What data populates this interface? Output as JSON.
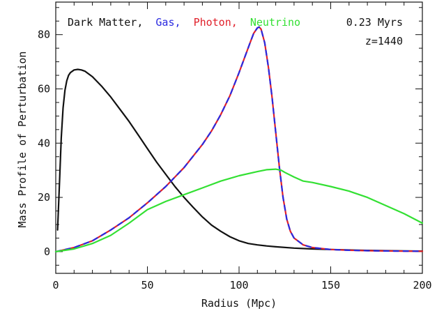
{
  "chart_data": {
    "type": "line",
    "title": "",
    "xlabel": "Radius (Mpc)",
    "ylabel": "Mass Profile of Perturbation",
    "xlim": [
      0,
      200
    ],
    "ylim": [
      -8,
      92
    ],
    "xticks": [
      0,
      50,
      100,
      150,
      200
    ],
    "yticks": [
      0,
      20,
      40,
      60,
      80
    ],
    "grid": false,
    "legend_position": "top-left",
    "annotations": [
      {
        "id": "time",
        "text": "0.23 Myrs"
      },
      {
        "id": "redshift",
        "text": "z=1440"
      }
    ],
    "legend": [
      {
        "text": "Dark Matter,",
        "color": "#000000"
      },
      {
        "text": "Gas,",
        "color": "#2a2ae0"
      },
      {
        "text": "Photon,",
        "color": "#e0202a"
      },
      {
        "text": "Neutrino",
        "color": "#33e033"
      }
    ],
    "series": [
      {
        "name": "Dark Matter",
        "color": "#111111",
        "x": [
          1,
          2,
          3,
          4,
          5,
          6,
          7,
          8,
          10,
          12,
          14,
          16,
          20,
          25,
          30,
          35,
          40,
          45,
          50,
          55,
          60,
          65,
          70,
          75,
          80,
          85,
          90,
          95,
          100,
          105,
          110,
          115,
          120,
          130,
          140,
          150,
          160,
          170,
          180,
          190,
          200
        ],
        "y": [
          8,
          25,
          42,
          53,
          59.5,
          63,
          65,
          66,
          67,
          67.2,
          67,
          66.5,
          64.5,
          61,
          57,
          52.5,
          48,
          43,
          38,
          33,
          28.5,
          24,
          20,
          16.3,
          12.8,
          9.8,
          7.5,
          5.5,
          4.0,
          3.0,
          2.5,
          2.1,
          1.8,
          1.3,
          1.0,
          0.8,
          0.6,
          0.45,
          0.35,
          0.25,
          0.2
        ]
      },
      {
        "name": "Photon",
        "color": "#e0202a",
        "x": [
          0,
          10,
          20,
          30,
          40,
          50,
          60,
          70,
          80,
          85,
          90,
          95,
          100,
          103,
          106,
          108,
          110,
          111,
          112,
          114,
          116,
          118,
          120,
          122,
          124,
          126,
          128,
          130,
          135,
          140,
          150,
          160,
          170,
          180,
          190,
          200
        ],
        "y": [
          0,
          1.5,
          4,
          8,
          12.5,
          18,
          24,
          31,
          39.5,
          44.5,
          50.5,
          57.5,
          66,
          71.5,
          77,
          80.5,
          82.5,
          82.8,
          82,
          77,
          68,
          57,
          44,
          31,
          20,
          12,
          7.5,
          5,
          2.5,
          1.5,
          0.8,
          0.5,
          0.35,
          0.25,
          0.2,
          0.15
        ]
      },
      {
        "name": "Gas",
        "color": "#2a2ae0",
        "x": [
          0,
          10,
          20,
          30,
          40,
          50,
          60,
          70,
          80,
          85,
          90,
          95,
          100,
          103,
          106,
          108,
          110,
          111,
          112,
          114,
          116,
          118,
          120,
          122,
          124,
          126,
          128,
          130,
          135,
          140,
          150,
          160,
          170,
          180,
          190,
          200
        ],
        "y": [
          0,
          1.5,
          4,
          8,
          12.5,
          18,
          24,
          31,
          39.5,
          44.5,
          50.5,
          57.5,
          66,
          71.5,
          77,
          80.5,
          82.5,
          82.8,
          82,
          77,
          68,
          57,
          44,
          31,
          20,
          12,
          7.5,
          5,
          2.5,
          1.5,
          0.8,
          0.5,
          0.35,
          0.25,
          0.2,
          0.15
        ]
      },
      {
        "name": "Neutrino",
        "color": "#33e033",
        "x": [
          0,
          10,
          20,
          30,
          40,
          45,
          50,
          55,
          60,
          70,
          80,
          90,
          100,
          110,
          115,
          120,
          123,
          125,
          130,
          135,
          140,
          150,
          160,
          170,
          180,
          190,
          200
        ],
        "y": [
          0,
          1,
          3,
          6,
          10.5,
          13,
          15.5,
          17,
          18.5,
          21,
          23.5,
          26,
          28,
          29.5,
          30.2,
          30.4,
          30,
          29.2,
          27.5,
          26,
          25.5,
          24,
          22.3,
          20,
          17,
          14,
          10.5
        ]
      }
    ]
  }
}
